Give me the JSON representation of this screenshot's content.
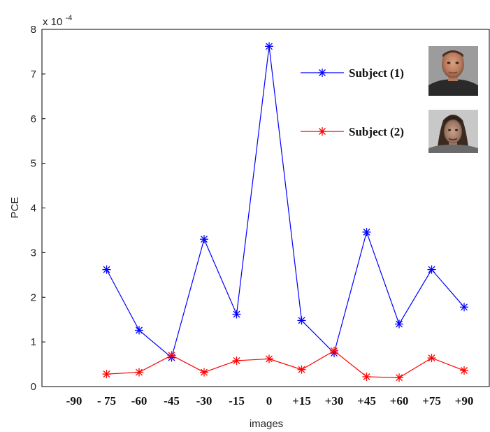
{
  "chart_data": {
    "type": "line",
    "xlabel": "images",
    "ylabel": "PCE",
    "y_exponent_label": "x 10",
    "y_exponent_power": "-4",
    "ylim": [
      0,
      8
    ],
    "yticks": [
      "0",
      "1",
      "2",
      "3",
      "4",
      "5",
      "6",
      "7",
      "8"
    ],
    "categories": [
      "-90",
      "- 75",
      "-60",
      "-45",
      "-30",
      "-15",
      "0",
      "+15",
      "+30",
      "+45",
      "+60",
      "+75",
      "+90"
    ],
    "series": [
      {
        "name": "Subject (1)",
        "color": "#0000ff",
        "values": [
          null,
          2.62,
          1.26,
          0.65,
          3.3,
          1.62,
          7.62,
          1.48,
          0.75,
          3.46,
          1.4,
          2.62,
          1.78
        ]
      },
      {
        "name": "Subject (2)",
        "color": "#ff0000",
        "values": [
          null,
          0.28,
          0.32,
          0.7,
          0.32,
          0.58,
          0.62,
          0.38,
          0.8,
          0.22,
          0.2,
          0.64,
          0.36
        ]
      }
    ],
    "legend_position": "top-right",
    "grid": false
  }
}
